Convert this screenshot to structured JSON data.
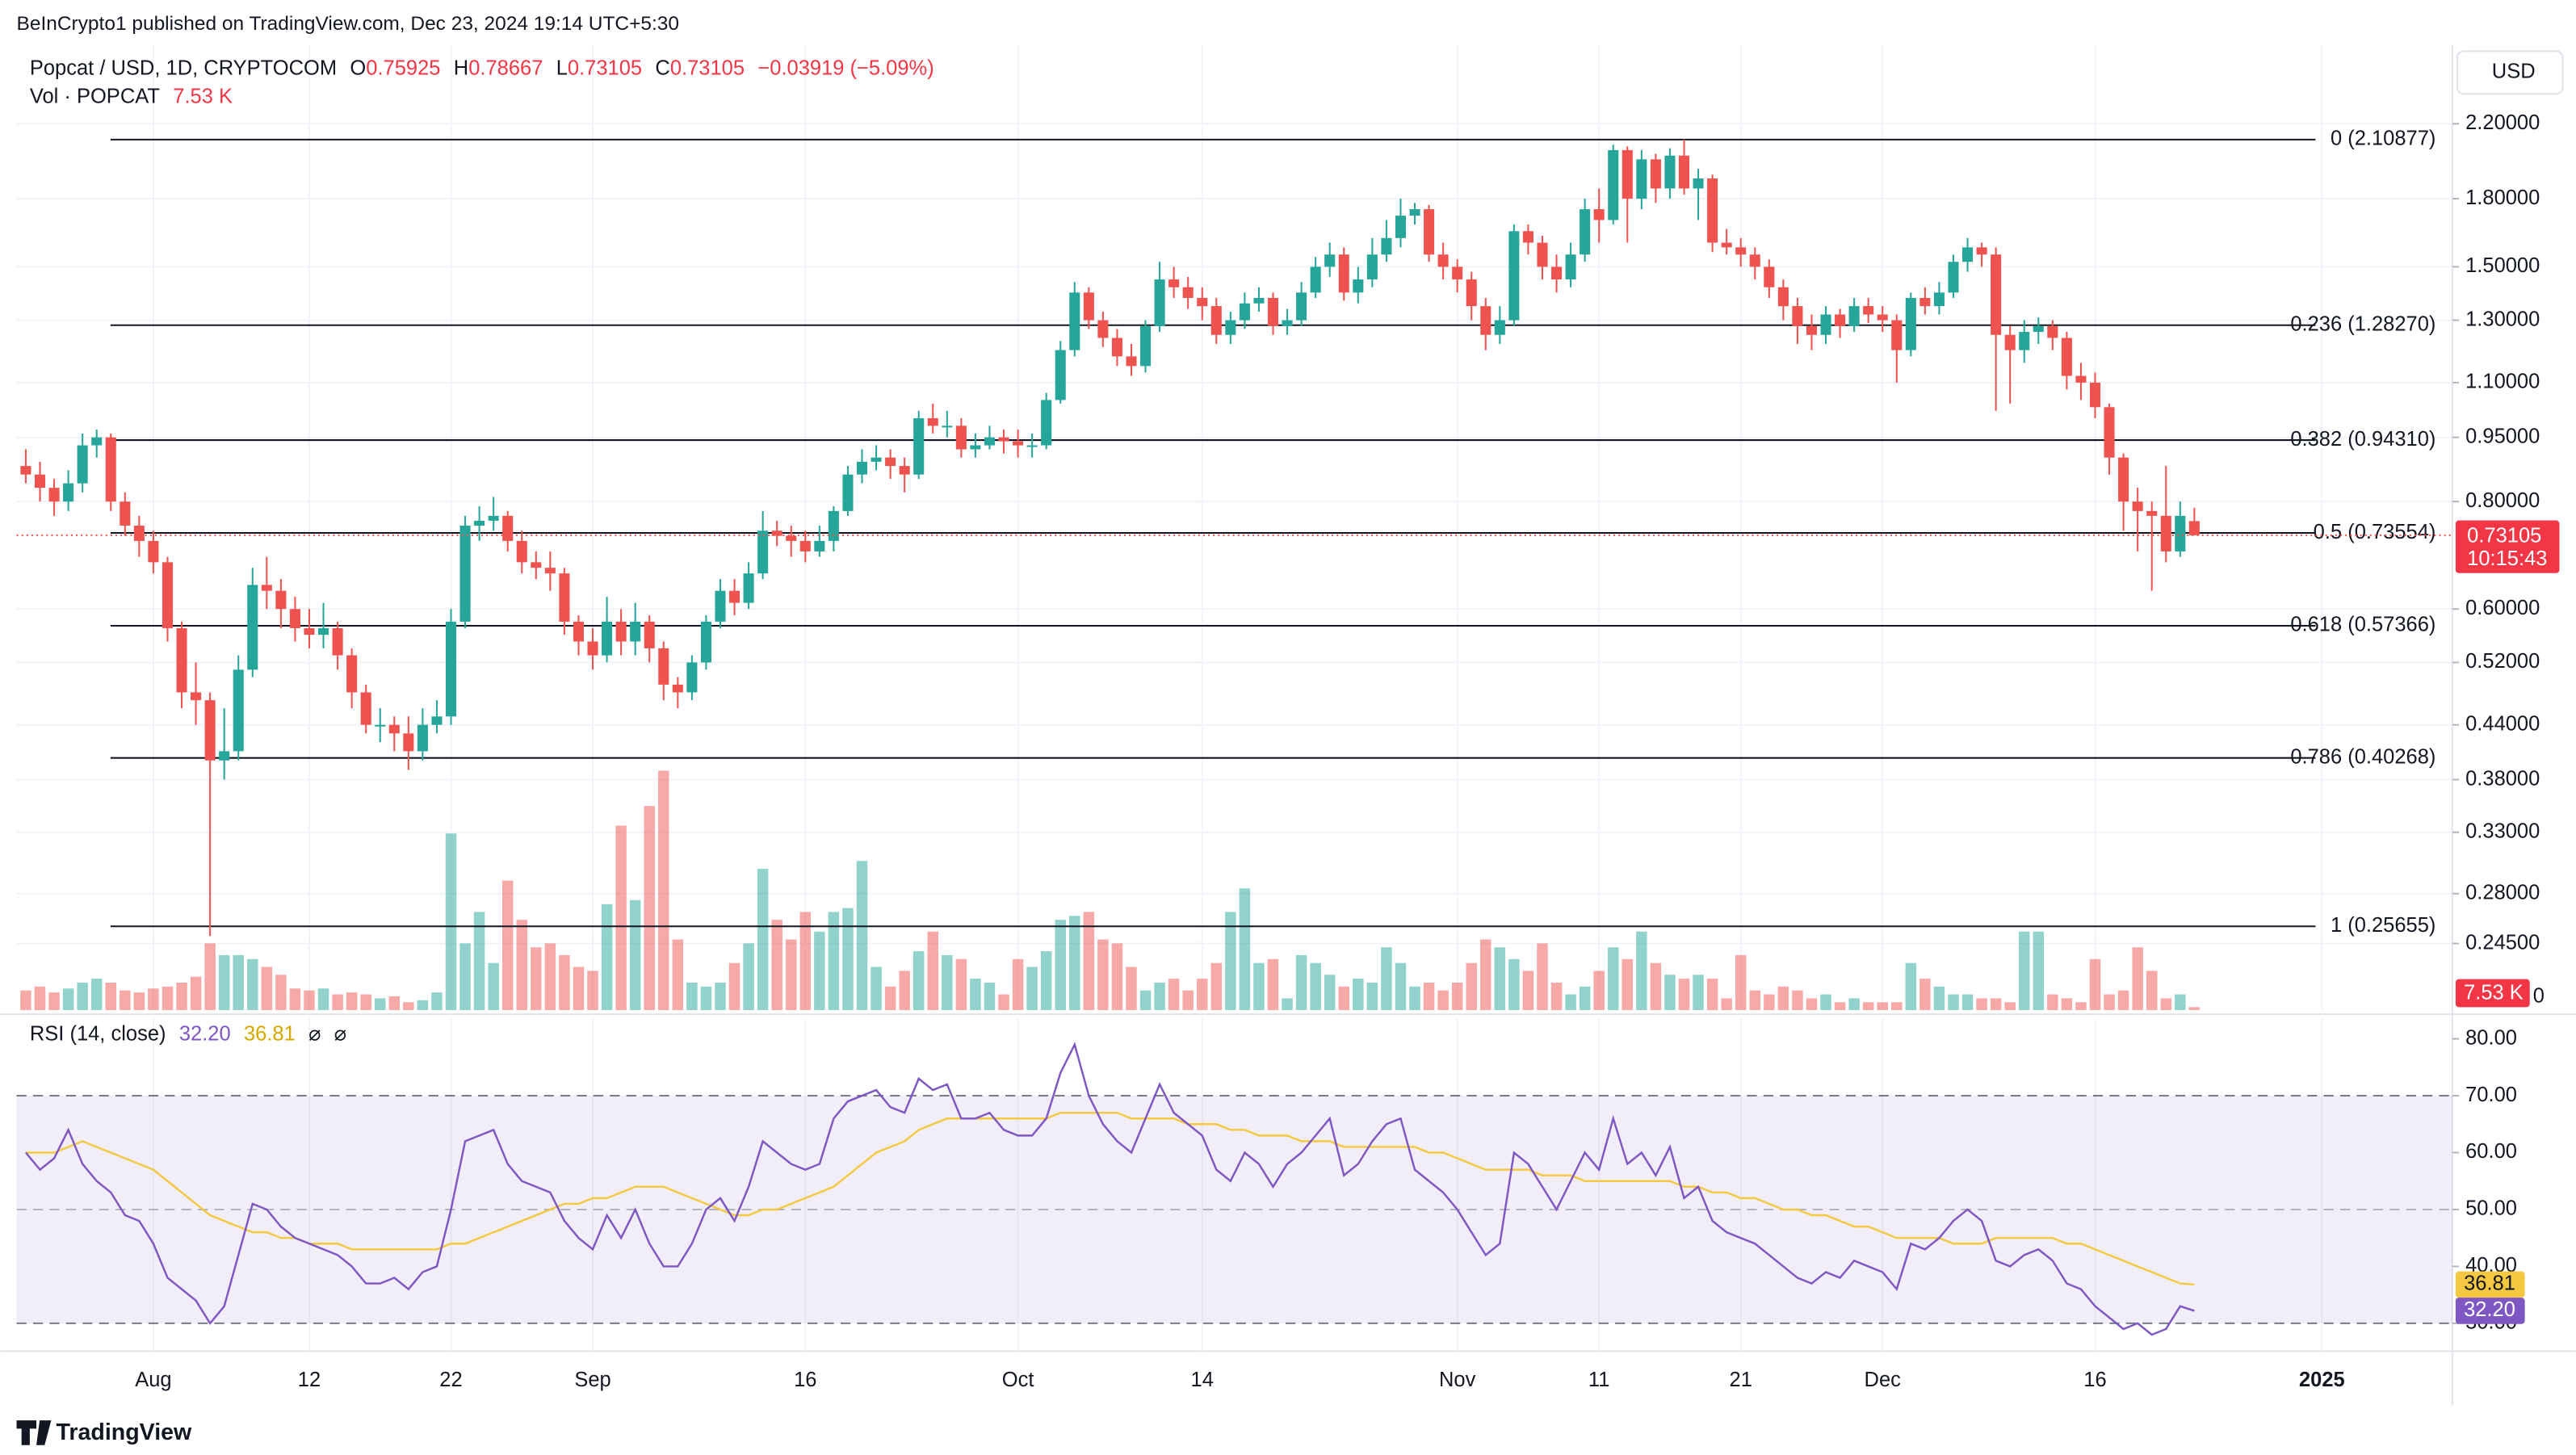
{
  "header": {
    "publisher": "BeInCrypto1 published on TradingView.com, Dec 23, 2024 19:14 UTC+5:30",
    "footer": "TradingView"
  },
  "chart_data": {
    "type": "candlestick",
    "title": "Popcat / USD, 1D, CRYPTOCOM",
    "ohlc_labels": [
      "O",
      "H",
      "L",
      "C"
    ],
    "change_label": "−0.03919 (−5.09%)",
    "currency": "USD",
    "volume_title": "Vol · POPCAT",
    "volume_last_label": "7.53 K",
    "countdown": "10:15:43",
    "log_scale": true,
    "grid": true,
    "up_color": "#26a69a",
    "down_color": "#ef5350",
    "xlim": [
      -0.65,
      171.2
    ],
    "xticks": [
      {
        "value": 9,
        "label": "Aug"
      },
      {
        "value": 20,
        "label": "12"
      },
      {
        "value": 30,
        "label": "22"
      },
      {
        "value": 40,
        "label": "Sep"
      },
      {
        "value": 55,
        "label": "16"
      },
      {
        "value": 70,
        "label": "Oct"
      },
      {
        "value": 83,
        "label": "14"
      },
      {
        "value": 101,
        "label": "Nov"
      },
      {
        "value": 111,
        "label": "11"
      },
      {
        "value": 121,
        "label": "21"
      },
      {
        "value": 131,
        "label": "Dec"
      },
      {
        "value": 146,
        "label": "16"
      },
      {
        "value": 162,
        "label": "2025"
      }
    ],
    "ylim": [
      0.205,
      2.72
    ],
    "yticks": [
      {
        "value": 2.2,
        "label": "2.20000"
      },
      {
        "value": 1.8,
        "label": "1.80000"
      },
      {
        "value": 1.5,
        "label": "1.50000"
      },
      {
        "value": 1.3,
        "label": "1.30000"
      },
      {
        "value": 1.1,
        "label": "1.10000"
      },
      {
        "value": 0.95,
        "label": "0.95000"
      },
      {
        "value": 0.8,
        "label": "0.80000"
      },
      {
        "value": 0.6,
        "label": "0.60000"
      },
      {
        "value": 0.52,
        "label": "0.52000"
      },
      {
        "value": 0.44,
        "label": "0.44000"
      },
      {
        "value": 0.38,
        "label": "0.38000"
      },
      {
        "value": 0.33,
        "label": "0.33000"
      },
      {
        "value": 0.28,
        "label": "0.28000"
      },
      {
        "value": 0.245,
        "label": "0.24500"
      }
    ],
    "open": [
      0.88,
      0.86,
      0.83,
      0.8,
      0.84,
      0.93,
      0.95,
      0.8,
      0.75,
      0.72,
      0.68,
      0.57,
      0.48,
      0.47,
      0.4,
      0.41,
      0.51,
      0.64,
      0.63,
      0.6,
      0.57,
      0.56,
      0.57,
      0.53,
      0.48,
      0.44,
      0.44,
      0.43,
      0.41,
      0.44,
      0.45,
      0.58,
      0.75,
      0.76,
      0.77,
      0.72,
      0.68,
      0.67,
      0.66,
      0.58,
      0.55,
      0.53,
      0.58,
      0.55,
      0.58,
      0.54,
      0.49,
      0.48,
      0.52,
      0.58,
      0.63,
      0.61,
      0.66,
      0.74,
      0.73,
      0.72,
      0.7,
      0.72,
      0.78,
      0.86,
      0.89,
      0.9,
      0.88,
      0.86,
      1.0,
      0.98,
      0.98,
      0.92,
      0.93,
      0.95,
      0.94,
      0.93,
      0.93,
      1.05,
      1.2,
      1.4,
      1.3,
      1.24,
      1.18,
      1.15,
      1.28,
      1.45,
      1.42,
      1.38,
      1.35,
      1.25,
      1.3,
      1.36,
      1.38,
      1.28,
      1.3,
      1.4,
      1.5,
      1.55,
      1.4,
      1.45,
      1.55,
      1.62,
      1.72,
      1.75,
      1.55,
      1.5,
      1.45,
      1.35,
      1.25,
      1.3,
      1.65,
      1.6,
      1.5,
      1.45,
      1.55,
      1.75,
      1.7,
      2.05,
      1.8,
      2.0,
      1.85,
      2.02,
      1.85,
      1.9,
      1.6,
      1.58,
      1.55,
      1.5,
      1.42,
      1.35,
      1.28,
      1.25,
      1.32,
      1.28,
      1.35,
      1.32,
      1.3,
      1.2,
      1.38,
      1.35,
      1.4,
      1.52,
      1.58,
      1.55,
      1.25,
      1.2,
      1.26,
      1.28,
      1.24,
      1.12,
      1.1,
      1.03,
      0.9,
      0.8,
      0.78,
      0.77,
      0.7,
      0.75925
    ],
    "high": [
      0.92,
      0.89,
      0.85,
      0.87,
      0.96,
      0.97,
      0.96,
      0.82,
      0.77,
      0.74,
      0.69,
      0.58,
      0.52,
      0.48,
      0.46,
      0.53,
      0.67,
      0.69,
      0.65,
      0.62,
      0.6,
      0.61,
      0.58,
      0.54,
      0.49,
      0.46,
      0.45,
      0.45,
      0.46,
      0.47,
      0.6,
      0.77,
      0.79,
      0.81,
      0.78,
      0.74,
      0.7,
      0.7,
      0.67,
      0.59,
      0.57,
      0.62,
      0.6,
      0.61,
      0.59,
      0.55,
      0.5,
      0.53,
      0.59,
      0.65,
      0.65,
      0.68,
      0.78,
      0.76,
      0.75,
      0.74,
      0.75,
      0.79,
      0.88,
      0.92,
      0.93,
      0.92,
      0.9,
      1.02,
      1.04,
      1.02,
      1.0,
      0.96,
      0.98,
      0.97,
      0.97,
      0.96,
      1.07,
      1.23,
      1.44,
      1.42,
      1.33,
      1.27,
      1.22,
      1.3,
      1.52,
      1.5,
      1.46,
      1.42,
      1.38,
      1.33,
      1.4,
      1.42,
      1.4,
      1.34,
      1.44,
      1.54,
      1.6,
      1.58,
      1.5,
      1.62,
      1.7,
      1.8,
      1.78,
      1.77,
      1.6,
      1.53,
      1.48,
      1.38,
      1.35,
      1.68,
      1.68,
      1.63,
      1.55,
      1.6,
      1.8,
      1.85,
      2.08,
      2.07,
      2.05,
      2.03,
      2.06,
      2.10877,
      1.95,
      1.92,
      1.66,
      1.62,
      1.58,
      1.53,
      1.45,
      1.38,
      1.32,
      1.35,
      1.34,
      1.38,
      1.38,
      1.35,
      1.32,
      1.4,
      1.42,
      1.44,
      1.55,
      1.62,
      1.6,
      1.58,
      1.28,
      1.3,
      1.31,
      1.3,
      1.26,
      1.16,
      1.13,
      1.04,
      0.91,
      0.83,
      0.8,
      0.88,
      0.8,
      0.78667
    ],
    "low": [
      0.84,
      0.8,
      0.77,
      0.78,
      0.82,
      0.9,
      0.78,
      0.73,
      0.69,
      0.66,
      0.55,
      0.46,
      0.44,
      0.25,
      0.38,
      0.4,
      0.5,
      0.6,
      0.57,
      0.55,
      0.54,
      0.54,
      0.51,
      0.46,
      0.43,
      0.42,
      0.41,
      0.39,
      0.4,
      0.43,
      0.44,
      0.57,
      0.72,
      0.74,
      0.7,
      0.66,
      0.65,
      0.63,
      0.56,
      0.53,
      0.51,
      0.52,
      0.53,
      0.53,
      0.52,
      0.47,
      0.46,
      0.47,
      0.51,
      0.57,
      0.59,
      0.6,
      0.65,
      0.71,
      0.69,
      0.68,
      0.69,
      0.7,
      0.77,
      0.84,
      0.87,
      0.85,
      0.82,
      0.85,
      0.96,
      0.95,
      0.9,
      0.9,
      0.92,
      0.91,
      0.9,
      0.9,
      0.92,
      1.04,
      1.18,
      1.27,
      1.21,
      1.15,
      1.12,
      1.13,
      1.26,
      1.38,
      1.34,
      1.3,
      1.22,
      1.22,
      1.27,
      1.33,
      1.25,
      1.25,
      1.28,
      1.38,
      1.46,
      1.37,
      1.36,
      1.42,
      1.52,
      1.58,
      1.68,
      1.52,
      1.45,
      1.4,
      1.3,
      1.2,
      1.22,
      1.28,
      1.55,
      1.45,
      1.4,
      1.42,
      1.52,
      1.6,
      1.68,
      1.6,
      1.75,
      1.78,
      1.8,
      1.82,
      1.7,
      1.56,
      1.55,
      1.5,
      1.45,
      1.38,
      1.3,
      1.22,
      1.2,
      1.22,
      1.24,
      1.26,
      1.29,
      1.26,
      1.1,
      1.18,
      1.32,
      1.32,
      1.38,
      1.48,
      1.5,
      1.02,
      1.04,
      1.16,
      1.22,
      1.2,
      1.08,
      1.05,
      1.0,
      0.86,
      0.74,
      0.7,
      0.63,
      0.68,
      0.69,
      0.73105
    ],
    "close": [
      0.86,
      0.83,
      0.8,
      0.84,
      0.93,
      0.95,
      0.8,
      0.75,
      0.72,
      0.68,
      0.57,
      0.48,
      0.47,
      0.4,
      0.41,
      0.51,
      0.64,
      0.63,
      0.6,
      0.57,
      0.56,
      0.57,
      0.53,
      0.48,
      0.44,
      0.44,
      0.43,
      0.41,
      0.44,
      0.45,
      0.58,
      0.75,
      0.76,
      0.77,
      0.72,
      0.68,
      0.67,
      0.66,
      0.58,
      0.55,
      0.53,
      0.58,
      0.55,
      0.58,
      0.54,
      0.49,
      0.48,
      0.52,
      0.58,
      0.63,
      0.61,
      0.66,
      0.74,
      0.73,
      0.72,
      0.7,
      0.72,
      0.78,
      0.86,
      0.89,
      0.9,
      0.88,
      0.86,
      1.0,
      0.98,
      0.98,
      0.92,
      0.93,
      0.95,
      0.94,
      0.93,
      0.93,
      1.05,
      1.2,
      1.4,
      1.3,
      1.24,
      1.18,
      1.15,
      1.28,
      1.45,
      1.42,
      1.38,
      1.35,
      1.25,
      1.3,
      1.36,
      1.38,
      1.28,
      1.3,
      1.4,
      1.5,
      1.55,
      1.4,
      1.45,
      1.55,
      1.62,
      1.72,
      1.75,
      1.55,
      1.5,
      1.45,
      1.35,
      1.25,
      1.3,
      1.65,
      1.6,
      1.5,
      1.45,
      1.55,
      1.75,
      1.7,
      2.05,
      1.8,
      2.0,
      1.85,
      2.02,
      1.85,
      1.9,
      1.6,
      1.58,
      1.55,
      1.5,
      1.42,
      1.35,
      1.28,
      1.25,
      1.32,
      1.28,
      1.35,
      1.32,
      1.3,
      1.2,
      1.38,
      1.35,
      1.4,
      1.52,
      1.58,
      1.55,
      1.25,
      1.2,
      1.26,
      1.28,
      1.24,
      1.12,
      1.1,
      1.03,
      0.9,
      0.8,
      0.78,
      0.77,
      0.7,
      0.77,
      0.73105
    ],
    "volume": [
      50,
      60,
      45,
      55,
      70,
      80,
      70,
      50,
      45,
      55,
      60,
      70,
      85,
      170,
      140,
      140,
      130,
      110,
      90,
      55,
      50,
      55,
      40,
      45,
      40,
      30,
      35,
      20,
      25,
      45,
      450,
      170,
      250,
      120,
      330,
      230,
      160,
      170,
      140,
      110,
      100,
      270,
      470,
      280,
      520,
      610,
      180,
      70,
      60,
      70,
      120,
      170,
      360,
      230,
      180,
      250,
      200,
      250,
      260,
      380,
      110,
      60,
      100,
      150,
      200,
      140,
      130,
      80,
      70,
      40,
      130,
      110,
      150,
      230,
      240,
      250,
      180,
      170,
      110,
      50,
      70,
      80,
      50,
      80,
      120,
      250,
      310,
      120,
      130,
      30,
      140,
      120,
      90,
      60,
      80,
      70,
      160,
      120,
      60,
      70,
      50,
      70,
      120,
      180,
      160,
      130,
      100,
      170,
      70,
      40,
      60,
      100,
      160,
      130,
      200,
      120,
      90,
      80,
      90,
      80,
      30,
      140,
      50,
      40,
      60,
      50,
      30,
      40,
      20,
      30,
      20,
      20,
      20,
      120,
      80,
      60,
      40,
      40,
      30,
      30,
      20,
      200,
      200,
      40,
      30,
      20,
      130,
      40,
      50,
      160,
      100,
      30,
      40,
      7.53
    ],
    "volume_ylim": [
      0,
      2460
    ],
    "volume_yticks": [
      0
    ],
    "fib_levels": [
      {
        "label": "0 (2.10877)",
        "value": 2.10877
      },
      {
        "label": "0.236 (1.28270)",
        "value": 1.2827
      },
      {
        "label": "0.382 (0.94310)",
        "value": 0.9431
      },
      {
        "label": "0.5 (0.73554)",
        "value": 0.73554
      },
      {
        "label": "0.618 (0.57366)",
        "value": 0.57366
      },
      {
        "label": "0.786 (0.40268)",
        "value": 0.40268
      },
      {
        "label": "1 (0.25655)",
        "value": 0.25655
      }
    ],
    "rsi": {
      "title": "RSI (14, close)",
      "line_color": "#7e57c2",
      "ma_color": "#f5c842",
      "value_label": "32.20",
      "ma_label": "36.81",
      "extras": [
        "⌀",
        "⌀"
      ],
      "band": [
        30,
        70
      ],
      "mid": 50,
      "ylim": [
        25.1,
        83.6
      ],
      "yticks": [
        {
          "value": 80,
          "label": "80.00"
        },
        {
          "value": 70,
          "label": "70.00"
        },
        {
          "value": 60,
          "label": "60.00"
        },
        {
          "value": 50,
          "label": "50.00"
        },
        {
          "value": 40,
          "label": "40.00"
        },
        {
          "value": 30,
          "label": "30.00"
        }
      ],
      "values": [
        60,
        57,
        59,
        64,
        58,
        55,
        53,
        49,
        48,
        44,
        38,
        36,
        34,
        30,
        33,
        42,
        51,
        50,
        47,
        45,
        44,
        43,
        42,
        40,
        37,
        37,
        38,
        36,
        39,
        40,
        50,
        62,
        63,
        64,
        58,
        55,
        54,
        53,
        48,
        45,
        43,
        49,
        45,
        50,
        44,
        40,
        40,
        44,
        50,
        52,
        48,
        54,
        62,
        60,
        58,
        57,
        58,
        66,
        69,
        70,
        71,
        68,
        67,
        73,
        71,
        72,
        66,
        66,
        67,
        64,
        63,
        63,
        66,
        74,
        79,
        70,
        65,
        62,
        60,
        66,
        72,
        67,
        65,
        63,
        57,
        55,
        60,
        58,
        54,
        58,
        60,
        63,
        66,
        56,
        58,
        62,
        65,
        66,
        57,
        55,
        53,
        50,
        46,
        42,
        44,
        60,
        58,
        54,
        50,
        55,
        60,
        57,
        66,
        58,
        60,
        56,
        61,
        52,
        54,
        48,
        46,
        45,
        44,
        42,
        40,
        38,
        37,
        39,
        38,
        41,
        40,
        39,
        36,
        44,
        43,
        45,
        48,
        50,
        48,
        41,
        40,
        42,
        43,
        41,
        37,
        36,
        33,
        31,
        29,
        30,
        28,
        29,
        33,
        32.2
      ],
      "ma": [
        60,
        60,
        60,
        61,
        62,
        61,
        60,
        59,
        58,
        57,
        55,
        53,
        51,
        49,
        48,
        47,
        46,
        46,
        45,
        45,
        44,
        44,
        44,
        43,
        43,
        43,
        43,
        43,
        43,
        43,
        44,
        44,
        45,
        46,
        47,
        48,
        49,
        50,
        51,
        51,
        52,
        52,
        53,
        54,
        54,
        54,
        53,
        52,
        51,
        50,
        49,
        49,
        50,
        50,
        51,
        52,
        53,
        54,
        56,
        58,
        60,
        61,
        62,
        64,
        65,
        66,
        66,
        66,
        66,
        66,
        66,
        66,
        66,
        67,
        67,
        67,
        67,
        67,
        66,
        66,
        66,
        66,
        65,
        65,
        65,
        64,
        64,
        63,
        63,
        63,
        62,
        62,
        62,
        61,
        61,
        61,
        61,
        61,
        61,
        60,
        60,
        59,
        58,
        57,
        57,
        57,
        57,
        56,
        56,
        56,
        55,
        55,
        55,
        55,
        55,
        55,
        55,
        54,
        54,
        53,
        53,
        52,
        52,
        51,
        50,
        50,
        49,
        49,
        48,
        47,
        47,
        46,
        45,
        45,
        45,
        45,
        44,
        44,
        44,
        45,
        45,
        45,
        45,
        45,
        44,
        44,
        43,
        42,
        41,
        40,
        39,
        38,
        37,
        36.81
      ]
    }
  }
}
